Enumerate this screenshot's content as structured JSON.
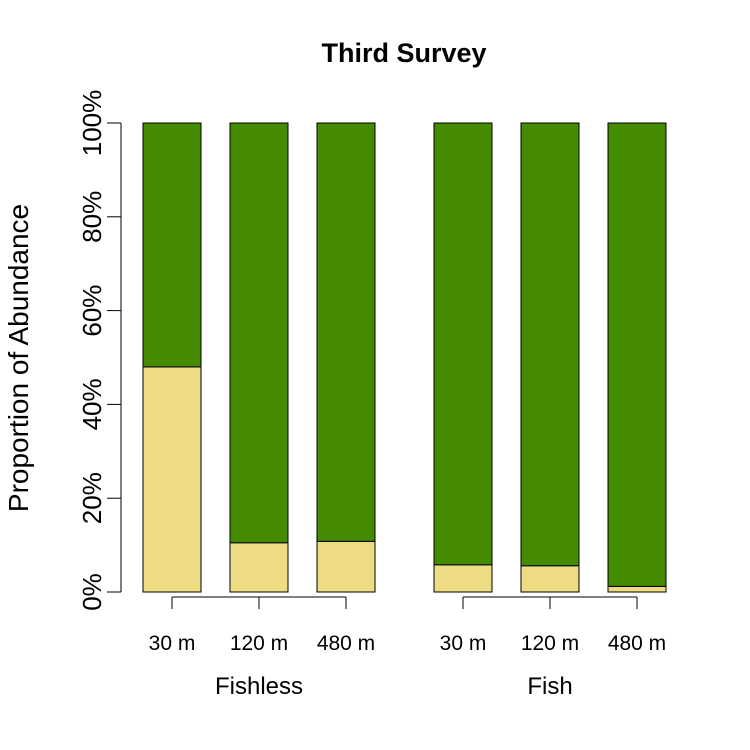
{
  "chart_data": {
    "type": "bar",
    "stacked": true,
    "title": "Third Survey",
    "xlabel": "",
    "ylabel": "Proportion of Abundance",
    "ylim": [
      0,
      100
    ],
    "yticks": [
      "0%",
      "20%",
      "40%",
      "60%",
      "80%",
      "100%"
    ],
    "ytick_values": [
      0,
      20,
      40,
      60,
      80,
      100
    ],
    "categories": [
      "30 m",
      "120 m",
      "480 m",
      "30 m",
      "120 m",
      "480 m"
    ],
    "groups": [
      {
        "name": "Fishless",
        "categories": [
          "30 m",
          "120 m",
          "480 m"
        ]
      },
      {
        "name": "Fish",
        "categories": [
          "30 m",
          "120 m",
          "480 m"
        ]
      }
    ],
    "series": [
      {
        "color": "#EEDC85",
        "values": [
          48,
          10.5,
          10.8,
          5.8,
          5.6,
          1.2
        ]
      },
      {
        "color": "#458B00",
        "values": [
          52,
          89.5,
          89.2,
          94.2,
          94.4,
          98.8
        ]
      }
    ],
    "grid": false,
    "legend": "none"
  }
}
